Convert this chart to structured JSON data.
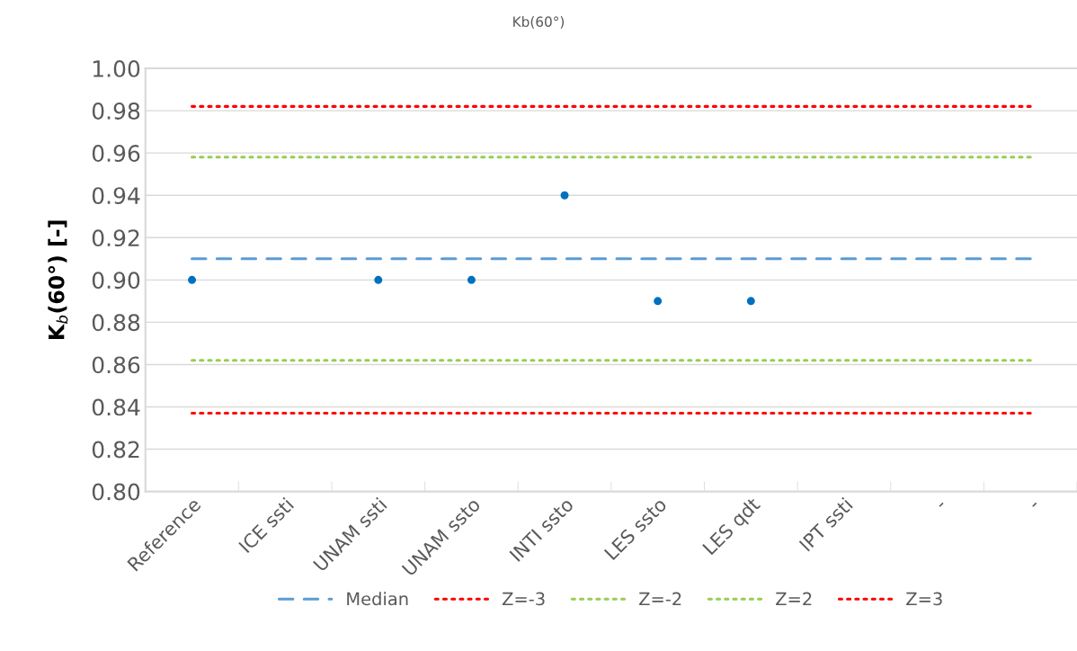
{
  "chart_data": {
    "type": "line",
    "title": "Kb(60°)",
    "ylabel": "K$_{b}$(60°) [-]",
    "categories": [
      "Reference",
      "ICE ssti",
      "UNAM ssti",
      "UNAM ssto",
      "INTI ssto",
      "LES ssto",
      "LES qdt",
      "IPT ssti",
      "-",
      "-"
    ],
    "series": [
      {
        "type": "scatter",
        "color": "#0070c0",
        "marker": "circle",
        "values": [
          0.9,
          null,
          0.9,
          0.9,
          0.94,
          0.89,
          0.89,
          null,
          null,
          null
        ]
      },
      {
        "name": "Median",
        "color": "#5b9bd5",
        "line_style": "dashed",
        "values": [
          0.91,
          0.91,
          0.91,
          0.91,
          0.91,
          0.91,
          0.91,
          0.91,
          0.91,
          0.91
        ]
      },
      {
        "name": "Z=-3",
        "color": "#ff0000",
        "line_style": "dotted",
        "values": [
          0.837,
          0.837,
          0.837,
          0.837,
          0.837,
          0.837,
          0.837,
          0.837,
          0.837,
          0.837
        ]
      },
      {
        "name": "Z=-2",
        "color": "#92d050",
        "line_style": "dotted",
        "values": [
          0.862,
          0.862,
          0.862,
          0.862,
          0.862,
          0.862,
          0.862,
          0.862,
          0.862,
          0.862
        ]
      },
      {
        "name": "Z=2",
        "color": "#92d050",
        "line_style": "dotted",
        "values": [
          0.958,
          0.958,
          0.958,
          0.958,
          0.958,
          0.958,
          0.958,
          0.958,
          0.958,
          0.958
        ]
      },
      {
        "name": "Z=3",
        "color": "#ff0000",
        "line_style": "dotted",
        "values": [
          0.982,
          0.982,
          0.982,
          0.982,
          0.982,
          0.982,
          0.982,
          0.982,
          0.982,
          0.982
        ]
      }
    ],
    "ylim": [
      0.8,
      1.0
    ],
    "yticks": [
      {
        "value": 0.8,
        "label": "0.80"
      },
      {
        "value": 0.82,
        "label": "0.82"
      },
      {
        "value": 0.84,
        "label": "0.84"
      },
      {
        "value": 0.86,
        "label": "0.86"
      },
      {
        "value": 0.88,
        "label": "0.88"
      },
      {
        "value": 0.9,
        "label": "0.90"
      },
      {
        "value": 0.92,
        "label": "0.92"
      },
      {
        "value": 0.94,
        "label": "0.94"
      },
      {
        "value": 0.96,
        "label": "0.96"
      },
      {
        "value": 0.98,
        "label": "0.98"
      },
      {
        "value": 1.0,
        "label": "1.00"
      }
    ],
    "grid": "y",
    "legend": "bottom"
  }
}
